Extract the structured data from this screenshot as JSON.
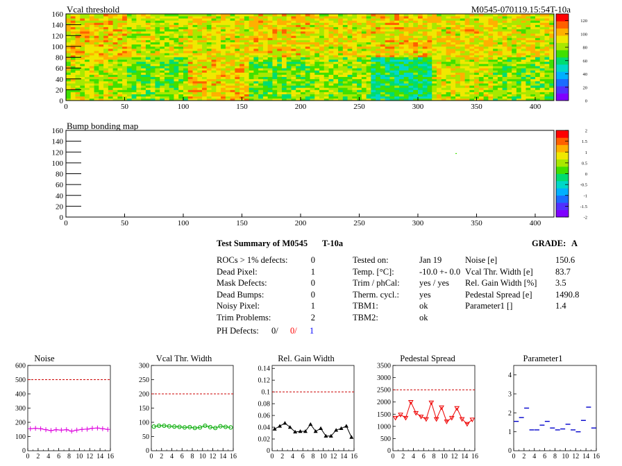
{
  "header": {
    "map_title": "Vcal threshold",
    "module_id": "M0545-070119.15:54T-10a",
    "bump_title": "Bump bonding map"
  },
  "map_axes": {
    "x_ticks": [
      "0",
      "50",
      "100",
      "150",
      "200",
      "250",
      "300",
      "350",
      "400"
    ],
    "y_ticks": [
      "0",
      "20",
      "40",
      "60",
      "80",
      "100",
      "120",
      "140",
      "160"
    ],
    "vcal_palette_ticks": [
      "0",
      "20",
      "40",
      "60",
      "80",
      "100",
      "120"
    ],
    "bump_palette_ticks": [
      "-2",
      "-1.5",
      "-1",
      "-0.5",
      "0",
      "0.5",
      "1",
      "1.5",
      "2"
    ]
  },
  "summary": {
    "title": "Test Summary of M0545",
    "temp_code": "T-10a",
    "grade_label": "GRADE:",
    "grade": "A",
    "left": [
      {
        "label": "ROCs > 1% defects:",
        "value": "0"
      },
      {
        "label": "Dead Pixel:",
        "value": "1"
      },
      {
        "label": "Mask Defects:",
        "value": "0"
      },
      {
        "label": "Dead Bumps:",
        "value": "0"
      },
      {
        "label": "Noisy Pixel:",
        "value": "1"
      },
      {
        "label": "Trim Problems:",
        "value": "2"
      }
    ],
    "ph_label": "PH Defects:",
    "ph_values": [
      "0/",
      "0/",
      "1"
    ],
    "ph_colors": [
      "#000000",
      "#ff0000",
      "#0000ff"
    ],
    "middle": [
      {
        "label": "Tested on:",
        "value": "Jan 19"
      },
      {
        "label": "Temp. [°C]:",
        "value": "-10.0 +- 0.0"
      },
      {
        "label": "Trim / phCal:",
        "value": "yes / yes"
      },
      {
        "label": "Therm. cycl.:",
        "value": "yes"
      },
      {
        "label": "TBM1:",
        "value": "ok"
      },
      {
        "label": "TBM2:",
        "value": "ok"
      }
    ],
    "right": [
      {
        "label": "Noise [e]",
        "value": "150.6"
      },
      {
        "label": "Vcal Thr. Width [e]",
        "value": "83.7"
      },
      {
        "label": "Rel. Gain Width [%]",
        "value": "3.5"
      },
      {
        "label": "Pedestal Spread [e]",
        "value": "1490.8"
      },
      {
        "label": "Parameter1 []",
        "value": "1.4"
      }
    ]
  },
  "chart_data": [
    {
      "type": "heatmap",
      "title": "Vcal threshold",
      "x_range": [
        0,
        416
      ],
      "y_range": [
        0,
        160
      ],
      "z_range": [
        0,
        130
      ],
      "roc_rows": [
        {
          "y_range": [
            80,
            160
          ],
          "roc_mean_vcal": [
            95,
            85,
            90,
            95,
            90,
            95,
            92,
            90
          ]
        },
        {
          "y_range": [
            0,
            80
          ],
          "roc_mean_vcal": [
            85,
            75,
            95,
            75,
            80,
            60,
            88,
            78
          ]
        }
      ],
      "grid": false
    },
    {
      "type": "heatmap",
      "title": "Bump bonding map",
      "x_range": [
        0,
        416
      ],
      "y_range": [
        0,
        160
      ],
      "z_range": [
        -2,
        2
      ],
      "points": [
        {
          "x": 332,
          "y": 118,
          "z": 0
        }
      ],
      "grid": false
    },
    {
      "type": "line",
      "title": "Noise",
      "x": [
        0,
        1,
        2,
        3,
        4,
        5,
        6,
        7,
        8,
        9,
        10,
        11,
        12,
        13,
        14,
        15
      ],
      "values": [
        155,
        158,
        155,
        148,
        142,
        148,
        145,
        148,
        138,
        145,
        150,
        152,
        158,
        160,
        155,
        150
      ],
      "xlim": [
        0,
        16
      ],
      "ylim": [
        0,
        600
      ],
      "x_ticks": [
        "0",
        "2",
        "4",
        "6",
        "8",
        "10",
        "12",
        "14",
        "16"
      ],
      "y_ticks": [
        "100",
        "200",
        "300",
        "400",
        "500",
        "600"
      ],
      "threshold": 500,
      "color": "#dd00dd",
      "marker": "plus"
    },
    {
      "type": "line",
      "title": "Vcal Thr. Width",
      "x": [
        0,
        1,
        2,
        3,
        4,
        5,
        6,
        7,
        8,
        9,
        10,
        11,
        12,
        13,
        14,
        15
      ],
      "values": [
        85,
        88,
        88,
        86,
        85,
        84,
        82,
        83,
        80,
        82,
        88,
        83,
        80,
        86,
        84,
        82
      ],
      "xlim": [
        0,
        16
      ],
      "ylim": [
        0,
        300
      ],
      "x_ticks": [
        "0",
        "2",
        "4",
        "6",
        "8",
        "10",
        "12",
        "14",
        "16"
      ],
      "y_ticks": [
        "50",
        "100",
        "150",
        "200",
        "250",
        "300"
      ],
      "threshold": 200,
      "color": "#00aa00",
      "marker": "circle"
    },
    {
      "type": "line",
      "title": "Rel. Gain Width",
      "x": [
        0,
        1,
        2,
        3,
        4,
        5,
        6,
        7,
        8,
        9,
        10,
        11,
        12,
        13,
        14,
        15
      ],
      "values": [
        0.037,
        0.042,
        0.047,
        0.04,
        0.032,
        0.033,
        0.033,
        0.045,
        0.033,
        0.038,
        0.025,
        0.025,
        0.035,
        0.038,
        0.042,
        0.023
      ],
      "xlim": [
        0,
        16
      ],
      "ylim": [
        0,
        0.145
      ],
      "x_ticks": [
        "0",
        "2",
        "4",
        "6",
        "8",
        "10",
        "12",
        "14",
        "16"
      ],
      "y_ticks": [
        "0.02",
        "0.04",
        "0.06",
        "0.08",
        "0.1",
        "0.12",
        "0.14"
      ],
      "threshold": 0.1,
      "color": "#000000",
      "marker": "triangle"
    },
    {
      "type": "line",
      "title": "Pedestal Spread",
      "x": [
        0,
        1,
        2,
        3,
        4,
        5,
        6,
        7,
        8,
        9,
        10,
        11,
        12,
        13,
        14,
        15
      ],
      "values": [
        1350,
        1480,
        1350,
        2000,
        1550,
        1400,
        1300,
        1980,
        1300,
        1780,
        1200,
        1350,
        1750,
        1300,
        1100,
        1280
      ],
      "xlim": [
        0,
        16
      ],
      "ylim": [
        0,
        3500
      ],
      "x_ticks": [
        "0",
        "2",
        "4",
        "6",
        "8",
        "10",
        "12",
        "14",
        "16"
      ],
      "y_ticks": [
        "500",
        "1000",
        "1500",
        "2000",
        "2500",
        "3000",
        "3500"
      ],
      "threshold": 2500,
      "color": "#ee0000",
      "marker": "triangle-down"
    },
    {
      "type": "scatter",
      "title": "Parameter1",
      "x": [
        0,
        1,
        2,
        3,
        4,
        5,
        6,
        7,
        8,
        9,
        10,
        11,
        12,
        13,
        14,
        15
      ],
      "values": [
        1.55,
        1.75,
        2.25,
        1.1,
        1.1,
        1.35,
        1.55,
        1.2,
        1.1,
        1.15,
        1.4,
        1.1,
        1.0,
        1.6,
        2.3,
        1.2
      ],
      "xlim": [
        0,
        16
      ],
      "ylim": [
        0,
        4.5
      ],
      "x_ticks": [
        "0",
        "2",
        "4",
        "6",
        "8",
        "10",
        "12",
        "14",
        "16"
      ],
      "y_ticks": [
        "1",
        "2",
        "3",
        "4"
      ],
      "color": "#0000cc",
      "marker": "dash"
    }
  ],
  "colors": {
    "threshold_line": "#cc0000",
    "palette": [
      "#7f00ff",
      "#5030ff",
      "#1a6cff",
      "#00b0ff",
      "#00d8c8",
      "#00dc70",
      "#40e000",
      "#a8e800",
      "#f0e800",
      "#ffb000",
      "#ff6000",
      "#ff0000"
    ]
  }
}
